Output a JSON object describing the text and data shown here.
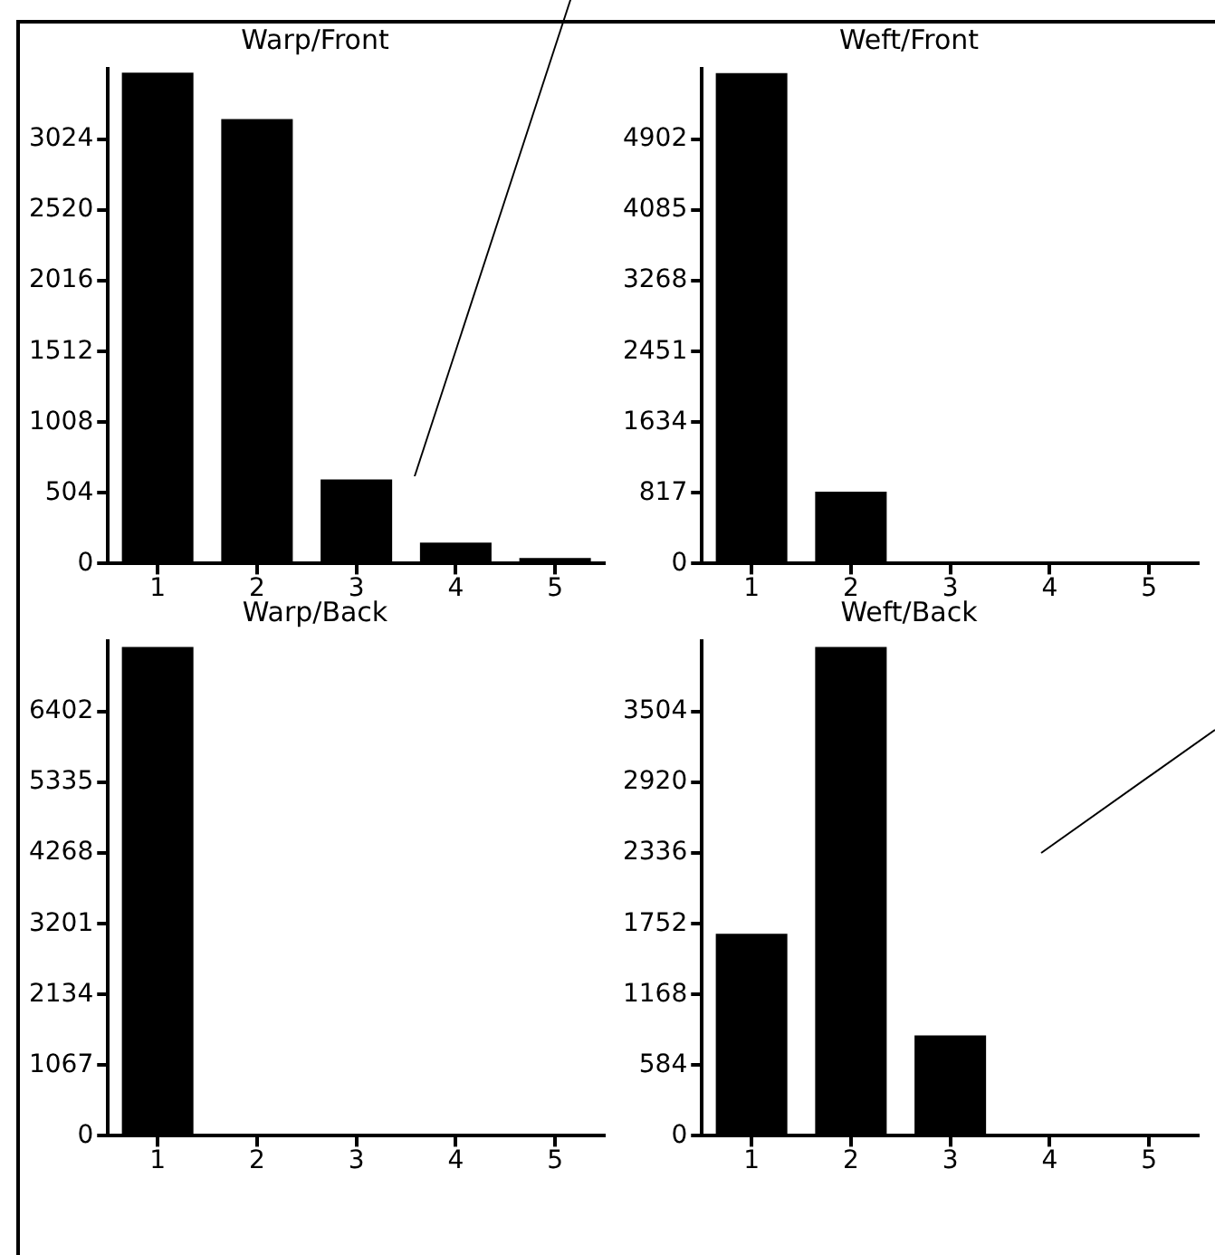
{
  "chart_data": [
    {
      "type": "bar",
      "title": "Warp/Front",
      "categories": [
        "1",
        "2",
        "3",
        "4",
        "5"
      ],
      "values": [
        3500,
        3170,
        600,
        150,
        40
      ],
      "color": "#000000",
      "ylim": [
        0,
        3528
      ],
      "yticks": [
        0,
        504,
        1008,
        1512,
        2016,
        2520,
        3024
      ]
    },
    {
      "type": "bar",
      "title": "Weft/Front",
      "categories": [
        "1",
        "2",
        "3",
        "4",
        "5"
      ],
      "values": [
        5670,
        830,
        0,
        0,
        0
      ],
      "color": "#000000",
      "ylim": [
        0,
        5719
      ],
      "yticks": [
        0,
        817,
        1634,
        2451,
        3268,
        4085,
        4902
      ]
    },
    {
      "type": "bar",
      "title": "Warp/Back",
      "categories": [
        "1",
        "2",
        "3",
        "4",
        "5"
      ],
      "values": [
        7380,
        0,
        0,
        0,
        0
      ],
      "color": "#000000",
      "ylim": [
        0,
        7469
      ],
      "yticks": [
        0,
        1067,
        2134,
        3201,
        4268,
        5335,
        6402
      ]
    },
    {
      "type": "bar",
      "title": "Weft/Back",
      "categories": [
        "1",
        "2",
        "3",
        "4",
        "5"
      ],
      "values": [
        1670,
        4040,
        830,
        0,
        0
      ],
      "color": "#000000",
      "ylim": [
        0,
        4088
      ],
      "yticks": [
        0,
        584,
        1168,
        1752,
        2336,
        2920,
        3504
      ]
    }
  ]
}
